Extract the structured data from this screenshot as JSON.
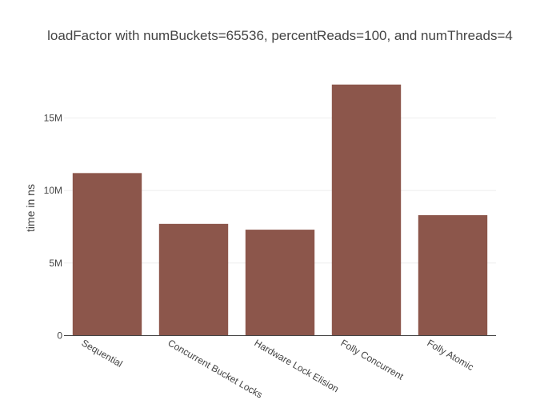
{
  "chart_data": {
    "type": "bar",
    "title": "loadFactor with numBuckets=65536, percentReads=100, and numThreads=4",
    "xlabel": "",
    "ylabel": "time in ns",
    "categories": [
      "Sequential",
      "Concurrent Bucket Locks",
      "Hardware Lock Elision",
      "Folly Concurrent",
      "Folly Atomic"
    ],
    "values": [
      11200000,
      7700000,
      7300000,
      17300000,
      8300000
    ],
    "ylim": [
      0,
      18000000
    ],
    "yticks": [
      0,
      5000000,
      10000000,
      15000000
    ],
    "ytick_labels": [
      "0",
      "5M",
      "10M",
      "15M"
    ],
    "bar_color": "#8c564b",
    "grid": true,
    "legend": "none"
  }
}
